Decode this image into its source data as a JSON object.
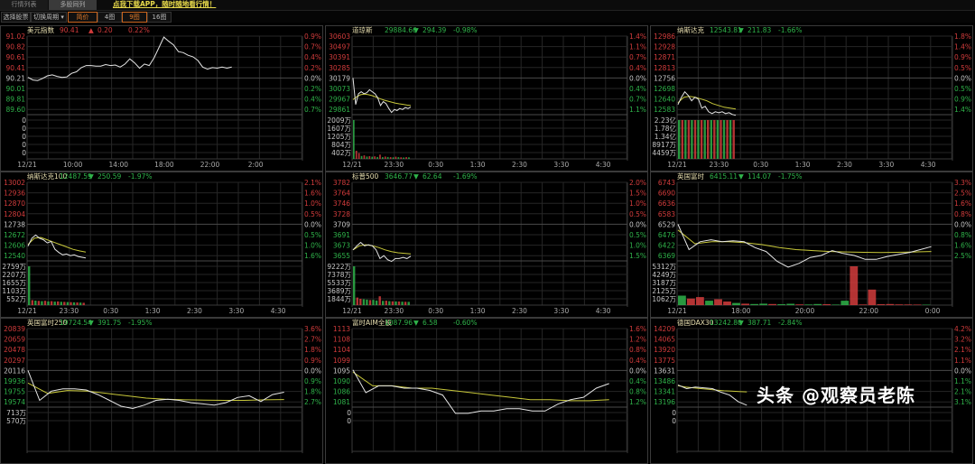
{
  "tabs": [
    {
      "label": "行情列表",
      "active": false
    },
    {
      "label": "多股同列",
      "active": true
    }
  ],
  "promo_link": "点我下载APP，随时随地看行情！",
  "toolbar": {
    "select_stock": "选择股票",
    "switch_period": "切换周期 ▾",
    "simple_price": "简价",
    "four_charts": "4图",
    "nine_charts": "9图",
    "sixteen_charts": "16图",
    "active": "9图"
  },
  "colors": {
    "up": "#d23c3c",
    "down": "#2fb34a",
    "flat": "#c8c8c8",
    "title": "#e8dfb0",
    "price_line": "#e6e6e6",
    "avg_line": "#c8c83a",
    "grid": "#262626",
    "grid_mid": "#4a4a4a",
    "border": "#3a3a3a"
  },
  "watermark": "头条 @观察员老陈",
  "chart_data": [
    {
      "type": "line",
      "name": "美元指数",
      "price": "90.41",
      "arrow": "▲",
      "change": "0.20",
      "pct": "0.22%",
      "direction": "up",
      "price_ticks": [
        "91.02",
        "90.82",
        "90.61",
        "90.41",
        "90.21",
        "90.01",
        "89.81",
        "89.60"
      ],
      "pct_ticks": [
        "0.9%",
        "0.7%",
        "0.4%",
        "0.2%",
        "0.0%",
        "0.2%",
        "0.4%",
        "0.7%"
      ],
      "vol_ticks": [
        "0",
        "0",
        "0",
        "0",
        "0"
      ],
      "time_ticks": [
        "12/21",
        "10:00",
        "14:00",
        "18:00",
        "22:00",
        "2:00"
      ],
      "series_price": [
        90.22,
        90.17,
        90.16,
        90.2,
        90.25,
        90.27,
        90.24,
        90.22,
        90.23,
        90.3,
        90.33,
        90.41,
        90.45,
        90.45,
        90.44,
        90.44,
        90.47,
        90.45,
        90.46,
        90.42,
        90.48,
        90.58,
        90.5,
        90.4,
        90.48,
        90.45,
        90.6,
        90.8,
        91.0,
        90.92,
        90.85,
        90.72,
        90.7,
        90.65,
        90.62,
        90.55,
        90.42,
        90.38,
        90.41,
        90.4,
        90.42,
        90.4,
        90.42
      ],
      "series_avg": [],
      "volume": []
    },
    {
      "type": "line",
      "name": "道琼斯",
      "price": "29884.66",
      "arrow": "▼",
      "change": "294.39",
      "pct": "-0.98%",
      "direction": "down",
      "price_ticks": [
        "30603",
        "30497",
        "30391",
        "30285",
        "30179",
        "30073",
        "29967",
        "29861"
      ],
      "pct_ticks": [
        "1.4%",
        "1.1%",
        "0.7%",
        "0.4%",
        "0.0%",
        "0.4%",
        "0.7%",
        "1.1%"
      ],
      "vol_ticks": [
        "2009万",
        "1607万",
        "1205万",
        "804万",
        "402万"
      ],
      "time_ticks": [
        "12/21",
        "23:30",
        "0:30",
        "1:30",
        "2:30",
        "3:30",
        "4:30"
      ],
      "series_price": [
        30179,
        29910,
        30020,
        30040,
        30020,
        30030,
        30060,
        30040,
        30020,
        29980,
        29900,
        29940,
        29920,
        29870,
        29830,
        29860,
        29850,
        29870,
        29860,
        29880,
        29870,
        29885
      ],
      "series_avg": [
        29960,
        29990,
        30010,
        30015,
        30010,
        30000,
        29985,
        29970,
        29955,
        29945,
        29935,
        29925,
        29918,
        29912,
        29905,
        29900
      ],
      "volume": [
        -2009,
        420,
        300,
        -150,
        180,
        -120,
        140,
        -110,
        130,
        -100,
        220,
        -90,
        120,
        -100,
        90,
        -80,
        110,
        -90,
        80,
        -70,
        90,
        -80
      ]
    },
    {
      "type": "line",
      "name": "纳斯达克",
      "price": "12543.81",
      "arrow": "▼",
      "change": "211.83",
      "pct": "-1.66%",
      "direction": "down",
      "price_ticks": [
        "12986",
        "12928",
        "12871",
        "12813",
        "12756",
        "12698",
        "12640",
        "12583"
      ],
      "pct_ticks": [
        "1.8%",
        "1.4%",
        "0.9%",
        "0.5%",
        "0.0%",
        "0.5%",
        "0.9%",
        "1.4%"
      ],
      "vol_ticks": [
        "2.23亿",
        "1.78亿",
        "1.34亿",
        "8917万",
        "4459万"
      ],
      "time_ticks": [
        "12/21",
        "23:30",
        "0:30",
        "1:30",
        "2:30",
        "3:30",
        "4:30"
      ],
      "series_price": [
        12610,
        12650,
        12680,
        12660,
        12630,
        12650,
        12640,
        12590,
        12600,
        12570,
        12560,
        12570,
        12565,
        12570,
        12560,
        12565,
        12555,
        12550
      ],
      "series_avg": [
        12620,
        12650,
        12655,
        12650,
        12640,
        12630,
        12615,
        12605,
        12595,
        12590,
        12585
      ],
      "volume": [
        -22300,
        5200,
        -4800,
        4600,
        -4200,
        4500,
        -4000,
        4100,
        -3900,
        4000,
        -3800,
        3900,
        -3700,
        3600,
        -3500,
        3600,
        -3400,
        3500
      ]
    },
    {
      "type": "line",
      "name": "纳斯达克100",
      "price": "12487.59",
      "arrow": "▼",
      "change": "250.59",
      "pct": "-1.97%",
      "direction": "down",
      "price_ticks": [
        "13002",
        "12936",
        "12870",
        "12804",
        "12738",
        "12672",
        "12606",
        "12540"
      ],
      "pct_ticks": [
        "2.1%",
        "1.6%",
        "1.0%",
        "0.5%",
        "0.0%",
        "0.5%",
        "1.0%",
        "1.6%"
      ],
      "vol_ticks": [
        "2759万",
        "2207万",
        "1655万",
        "1103万",
        "552万"
      ],
      "time_ticks": [
        "12/21",
        "23:30",
        "0:30",
        "1:30",
        "2:30",
        "3:30",
        "4:30"
      ],
      "series_price": [
        12600,
        12650,
        12670,
        12650,
        12640,
        12620,
        12630,
        12580,
        12560,
        12545,
        12550,
        12540,
        12545,
        12535,
        12530,
        12525
      ],
      "series_avg": [
        12610,
        12650,
        12655,
        12640,
        12625,
        12610,
        12595,
        12580,
        12570,
        12562
      ],
      "volume": [
        -2759,
        350,
        -320,
        300,
        -280,
        310,
        -260,
        280,
        -250,
        260,
        -240,
        230,
        -220,
        210,
        -200,
        190,
        -180,
        170
      ]
    },
    {
      "type": "line",
      "name": "标普500",
      "price": "3646.77",
      "arrow": "▼",
      "change": "62.64",
      "pct": "-1.69%",
      "direction": "down",
      "price_ticks": [
        "3782",
        "3764",
        "3746",
        "3728",
        "3709",
        "3691",
        "3673",
        "3655"
      ],
      "pct_ticks": [
        "2.0%",
        "1.5%",
        "1.0%",
        "0.5%",
        "0.0%",
        "0.5%",
        "1.0%",
        "1.5%"
      ],
      "vol_ticks": [
        "9222万",
        "7378万",
        "5533万",
        "3689万",
        "1844万"
      ],
      "time_ticks": [
        "12/21",
        "23:30",
        "0:30",
        "1:30",
        "2:30",
        "3:30",
        "4:30"
      ],
      "series_price": [
        3665,
        3672,
        3678,
        3672,
        3674,
        3672,
        3665,
        3650,
        3655,
        3648,
        3645,
        3650,
        3650,
        3652,
        3650,
        3654
      ],
      "series_avg": [
        3665,
        3672,
        3674,
        3672,
        3669,
        3665,
        3662,
        3660,
        3659,
        3658
      ],
      "volume": [
        -9222,
        1800,
        1500,
        -1400,
        -1300,
        1200,
        -1250,
        -1100,
        2100,
        -1000,
        1050,
        -950,
        900,
        -880,
        850,
        -820,
        800,
        -780
      ]
    },
    {
      "type": "line",
      "name": "英国富时",
      "price": "6415.11",
      "arrow": "▼",
      "change": "114.07",
      "pct": "-1.75%",
      "direction": "down",
      "price_ticks": [
        "6743",
        "6690",
        "6636",
        "6583",
        "6529",
        "6476",
        "6422",
        "6369"
      ],
      "pct_ticks": [
        "3.3%",
        "2.5%",
        "1.6%",
        "0.8%",
        "0.0%",
        "0.8%",
        "1.6%",
        "2.5%"
      ],
      "vol_ticks": [
        "5312万",
        "4249万",
        "3187万",
        "2125万",
        "1062万"
      ],
      "time_ticks": [
        "12/21",
        "18:00",
        "20:00",
        "22:00",
        "0:00"
      ],
      "series_price": [
        6529,
        6400,
        6440,
        6450,
        6440,
        6445,
        6440,
        6410,
        6390,
        6340,
        6310,
        6330,
        6360,
        6370,
        6395,
        6380,
        6370,
        6350,
        6350,
        6365,
        6375,
        6385,
        6400,
        6415
      ],
      "series_avg": [
        6500,
        6430,
        6440,
        6440,
        6435,
        6425,
        6410,
        6400,
        6395,
        6390,
        6388,
        6386,
        6385,
        6386,
        6388,
        6390
      ],
      "volume": [
        -1300,
        900,
        1100,
        -600,
        800,
        500,
        -300,
        200,
        -150,
        -200,
        150,
        -120,
        -180,
        100,
        -90,
        -150,
        120,
        -80,
        -600,
        5312,
        90,
        2125,
        120,
        150,
        100,
        90,
        80,
        -60
      ]
    },
    {
      "type": "line",
      "name": "英国富时250",
      "price": "19724.54",
      "arrow": "▼",
      "change": "391.75",
      "pct": "-1.95%",
      "direction": "down",
      "price_ticks": [
        "20839",
        "20659",
        "20478",
        "20297",
        "20116",
        "19936",
        "19755",
        "19574"
      ],
      "pct_ticks": [
        "3.6%",
        "2.7%",
        "1.8%",
        "0.9%",
        "0.0%",
        "0.9%",
        "1.8%",
        "2.7%"
      ],
      "vol_ticks": [
        "713万",
        "570万"
      ],
      "time_ticks": [],
      "series_price": [
        20116,
        19600,
        19760,
        19800,
        19800,
        19780,
        19700,
        19600,
        19500,
        19460,
        19520,
        19600,
        19620,
        19600,
        19560,
        19540,
        19520,
        19560,
        19650,
        19680,
        19580,
        19700,
        19740
      ],
      "series_avg": [
        19900,
        19720,
        19770,
        19760,
        19720,
        19680,
        19640,
        19620,
        19610,
        19605,
        19600,
        19600,
        19610,
        19615
      ],
      "volume": []
    },
    {
      "type": "line",
      "name": "富时AIM全股",
      "price": "1087.96",
      "arrow": "▼",
      "change": "6.58",
      "pct": "-0.60%",
      "direction": "down",
      "price_ticks": [
        "1113",
        "1108",
        "1104",
        "1099",
        "1095",
        "1090",
        "1086",
        "1081"
      ],
      "pct_ticks": [
        "1.6%",
        "1.2%",
        "0.8%",
        "0.4%",
        "0.0%",
        "0.4%",
        "0.8%",
        "1.2%"
      ],
      "vol_ticks": [
        "0",
        "0"
      ],
      "time_ticks": [],
      "series_price": [
        1095,
        1085,
        1088,
        1088,
        1087,
        1087,
        1086,
        1084,
        1076,
        1076,
        1077,
        1077,
        1078,
        1078,
        1077,
        1077,
        1080,
        1082,
        1083,
        1087,
        1089
      ],
      "series_avg": [
        1094,
        1088,
        1088,
        1087,
        1087,
        1086,
        1085,
        1084,
        1083,
        1082,
        1082,
        1081.5,
        1081.5,
        1082
      ],
      "volume": []
    },
    {
      "type": "line",
      "name": "德国DAX30",
      "price": "13242.80",
      "arrow": "▼",
      "change": "387.71",
      "pct": "-2.84%",
      "direction": "down",
      "price_ticks": [
        "14209",
        "14065",
        "13920",
        "13775",
        "13631",
        "13486",
        "13341",
        "13196"
      ],
      "pct_ticks": [
        "4.2%",
        "3.2%",
        "2.1%",
        "1.1%",
        "0.0%",
        "1.1%",
        "2.1%",
        "3.1%"
      ],
      "vol_ticks": [
        "0",
        "0"
      ],
      "time_ticks": [],
      "series_price": [
        13430,
        13380,
        13400,
        13390,
        13380,
        13330,
        13290,
        13200,
        13150
      ],
      "series_avg": [
        13420,
        13400,
        13390,
        13380,
        13370,
        13360,
        13350,
        13345,
        13340,
        13335
      ],
      "volume": []
    }
  ]
}
